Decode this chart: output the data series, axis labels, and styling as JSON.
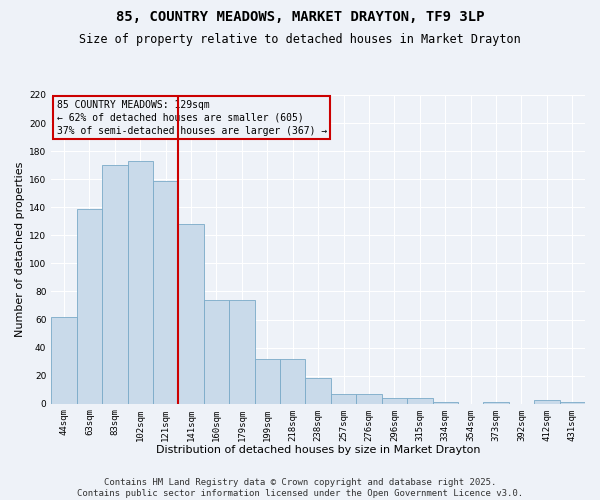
{
  "title": "85, COUNTRY MEADOWS, MARKET DRAYTON, TF9 3LP",
  "subtitle": "Size of property relative to detached houses in Market Drayton",
  "xlabel": "Distribution of detached houses by size in Market Drayton",
  "ylabel": "Number of detached properties",
  "bar_labels": [
    "44sqm",
    "63sqm",
    "83sqm",
    "102sqm",
    "121sqm",
    "141sqm",
    "160sqm",
    "179sqm",
    "199sqm",
    "218sqm",
    "238sqm",
    "257sqm",
    "276sqm",
    "296sqm",
    "315sqm",
    "334sqm",
    "354sqm",
    "373sqm",
    "392sqm",
    "412sqm",
    "431sqm"
  ],
  "bar_values": [
    62,
    139,
    170,
    173,
    159,
    128,
    74,
    74,
    32,
    32,
    18,
    7,
    7,
    4,
    4,
    1,
    0,
    1,
    0,
    3,
    1
  ],
  "bar_color": "#c9daea",
  "bar_edge_color": "#7aaac8",
  "vline_color": "#cc0000",
  "annotation_title": "85 COUNTRY MEADOWS: 129sqm",
  "annotation_line1": "← 62% of detached houses are smaller (605)",
  "annotation_line2": "37% of semi-detached houses are larger (367) →",
  "annotation_box_color": "#cc0000",
  "ylim": [
    0,
    220
  ],
  "yticks": [
    0,
    20,
    40,
    60,
    80,
    100,
    120,
    140,
    160,
    180,
    200,
    220
  ],
  "footer": "Contains HM Land Registry data © Crown copyright and database right 2025.\nContains public sector information licensed under the Open Government Licence v3.0.",
  "background_color": "#eef2f8",
  "grid_color": "#ffffff",
  "title_fontsize": 10,
  "subtitle_fontsize": 8.5,
  "xlabel_fontsize": 8,
  "ylabel_fontsize": 8,
  "tick_fontsize": 6.5,
  "annot_fontsize": 7,
  "footer_fontsize": 6.5
}
